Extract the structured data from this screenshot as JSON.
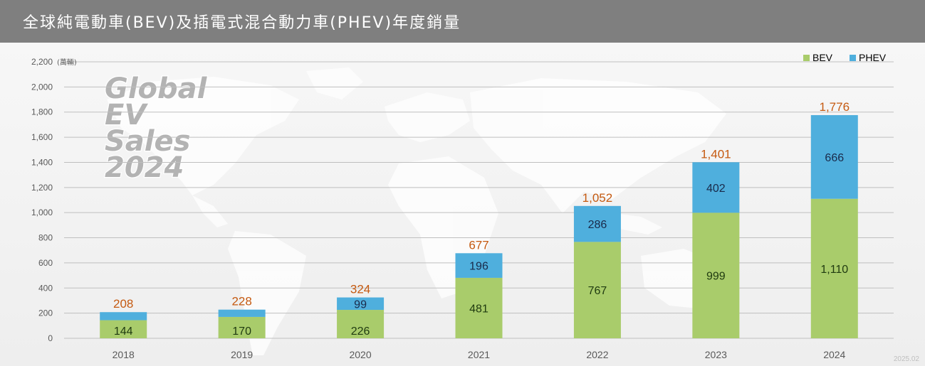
{
  "title": "全球純電動車(BEV)及插電式混合動力車(PHEV)年度銷量",
  "footnote": "2025.02",
  "logo_text": [
    "Global",
    "EV",
    "Sales",
    "2024"
  ],
  "colors": {
    "title_bar": "#7f7f7f",
    "bev": "#a9cc6b",
    "phev": "#4fafdd",
    "total_label": "#c55a11",
    "axis_text": "#595959",
    "grid": "#bfbfbf"
  },
  "chart_data": {
    "type": "bar",
    "stacked": true,
    "categories": [
      "2018",
      "2019",
      "2020",
      "2021",
      "2022",
      "2023",
      "2024"
    ],
    "series": [
      {
        "name": "BEV",
        "values": [
          144,
          170,
          226,
          481,
          767,
          999,
          1110
        ]
      },
      {
        "name": "PHEV",
        "values": [
          64,
          58,
          99,
          196,
          286,
          402,
          666
        ]
      }
    ],
    "segment_labels": {
      "BEV": [
        "144",
        "170",
        "226",
        "481",
        "767",
        "999",
        "1,110"
      ],
      "PHEV": [
        "",
        "",
        "99",
        "196",
        "286",
        "402",
        "666"
      ]
    },
    "totals": [
      "208",
      "228",
      "324",
      "677",
      "1,052",
      "1,401",
      "1,776"
    ],
    "ylim": [
      0,
      2200
    ],
    "yticks": [
      "0",
      "200",
      "400",
      "600",
      "800",
      "1,000",
      "1,200",
      "1,400",
      "1,600",
      "1,800",
      "2,000",
      "2,200"
    ],
    "yunit": "(萬輛)",
    "grid": true,
    "legend_position": "top-right"
  }
}
